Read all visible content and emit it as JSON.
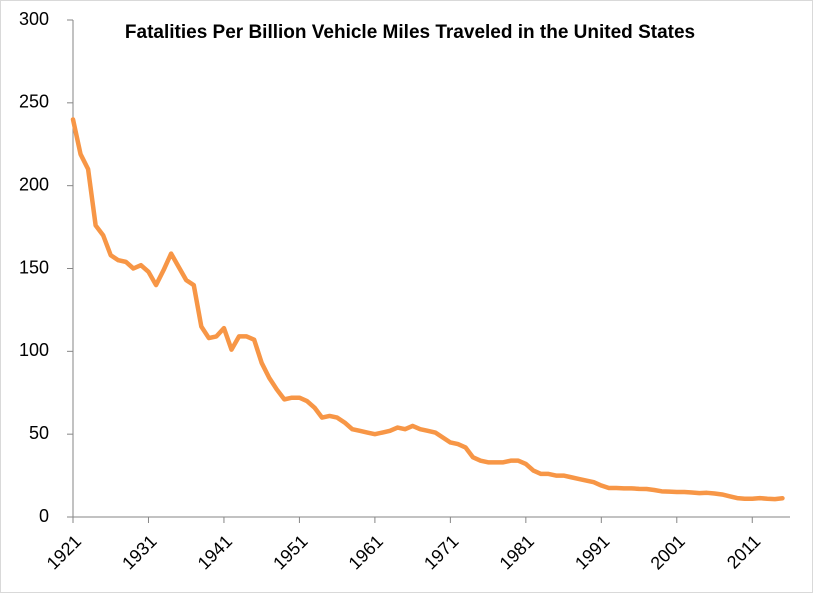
{
  "chart_data": {
    "type": "line",
    "title": "Fatalities Per Billion Vehicle Miles Traveled in the United States",
    "x": [
      1921,
      1922,
      1923,
      1924,
      1925,
      1926,
      1927,
      1928,
      1929,
      1930,
      1931,
      1932,
      1933,
      1934,
      1935,
      1936,
      1937,
      1938,
      1939,
      1940,
      1941,
      1942,
      1943,
      1944,
      1945,
      1946,
      1947,
      1948,
      1949,
      1950,
      1951,
      1952,
      1953,
      1954,
      1955,
      1956,
      1957,
      1958,
      1959,
      1960,
      1961,
      1962,
      1963,
      1964,
      1965,
      1966,
      1967,
      1968,
      1969,
      1970,
      1971,
      1972,
      1973,
      1974,
      1975,
      1976,
      1977,
      1978,
      1979,
      1980,
      1981,
      1982,
      1983,
      1984,
      1985,
      1986,
      1987,
      1988,
      1989,
      1990,
      1991,
      1992,
      1993,
      1994,
      1995,
      1996,
      1997,
      1998,
      1999,
      2000,
      2001,
      2002,
      2003,
      2004,
      2005,
      2006,
      2007,
      2008,
      2009,
      2010,
      2011,
      2012,
      2013,
      2014,
      2015
    ],
    "values": [
      240,
      219,
      210,
      176,
      170,
      158,
      155,
      154,
      150,
      152,
      148,
      140,
      149,
      159,
      151,
      143,
      140,
      115,
      108,
      109,
      114,
      101,
      109,
      109,
      107,
      93,
      84,
      77,
      71,
      72,
      72,
      70,
      66,
      60,
      61,
      60,
      57,
      53,
      52,
      51,
      50,
      51,
      52,
      54,
      53,
      55,
      53,
      52,
      51,
      48,
      45,
      44,
      42,
      36,
      34,
      33,
      33,
      33,
      34,
      34,
      32,
      28,
      26,
      26,
      25,
      25,
      24,
      23,
      22,
      21,
      19,
      17.5,
      17.5,
      17.3,
      17.3,
      17,
      16.9,
      16.3,
      15.5,
      15.3,
      15.1,
      15.1,
      14.8,
      14.4,
      14.6,
      14.2,
      13.6,
      12.5,
      11.4,
      11,
      11,
      11.4,
      11,
      10.8,
      11.3
    ],
    "color": "#f79646",
    "xlim": [
      1921,
      2016
    ],
    "xticks": [
      1921,
      1931,
      1941,
      1951,
      1961,
      1971,
      1981,
      1991,
      2001,
      2011
    ],
    "ylim": [
      0,
      300
    ],
    "yticks": [
      0,
      50,
      100,
      150,
      200,
      250,
      300
    ]
  }
}
